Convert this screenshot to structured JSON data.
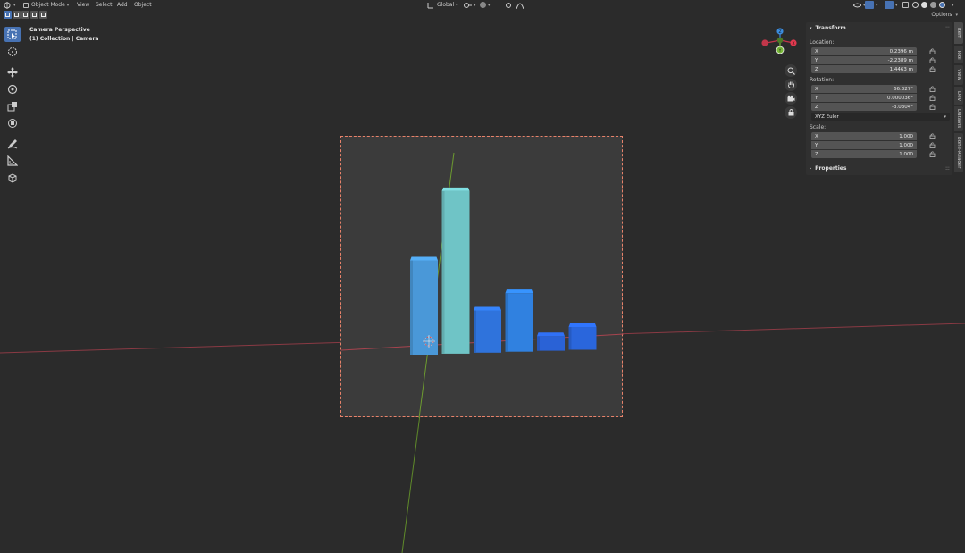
{
  "header": {
    "mode_label": "Object Mode",
    "menu": [
      "View",
      "Select",
      "Add",
      "Object"
    ],
    "transform_orientation": "Global"
  },
  "options_label": "Options",
  "viewport": {
    "view_name": "Camera Perspective",
    "collection_info": "(1) Collection | Camera"
  },
  "gizmo": {
    "axis_x": "X",
    "axis_y": "Y",
    "axis_z": "Z",
    "colors": {
      "x": "#e2394f",
      "y": "#79b83a",
      "z": "#3b8cde"
    }
  },
  "npanel": {
    "transform_title": "Transform",
    "location_label": "Location:",
    "location": [
      {
        "axis": "X",
        "value": "0.2396 m"
      },
      {
        "axis": "Y",
        "value": "-2.2389 m"
      },
      {
        "axis": "Z",
        "value": "1.4463 m"
      }
    ],
    "rotation_label": "Rotation:",
    "rotation": [
      {
        "axis": "X",
        "value": "66.327°"
      },
      {
        "axis": "Y",
        "value": "0.000036°"
      },
      {
        "axis": "Z",
        "value": "-3.0304°"
      }
    ],
    "rotation_mode": "XYZ Euler",
    "scale_label": "Scale:",
    "scale": [
      {
        "axis": "X",
        "value": "1.000"
      },
      {
        "axis": "Y",
        "value": "1.000"
      },
      {
        "axis": "Z",
        "value": "1.000"
      }
    ],
    "properties_title": "Properties"
  },
  "sidetabs": [
    "Item",
    "Tool",
    "View",
    "Dev",
    "DataVis",
    "Bone-Reader"
  ],
  "bars": [
    {
      "level": 0.58,
      "color": "#4a98d8"
    },
    {
      "level": 1.0,
      "color": "#6fc4c6"
    },
    {
      "level": 0.26,
      "color": "#2f73dc"
    },
    {
      "level": 0.36,
      "color": "#3081e0"
    },
    {
      "level": 0.09,
      "color": "#2a62d6"
    },
    {
      "level": 0.14,
      "color": "#2a66dc"
    }
  ]
}
